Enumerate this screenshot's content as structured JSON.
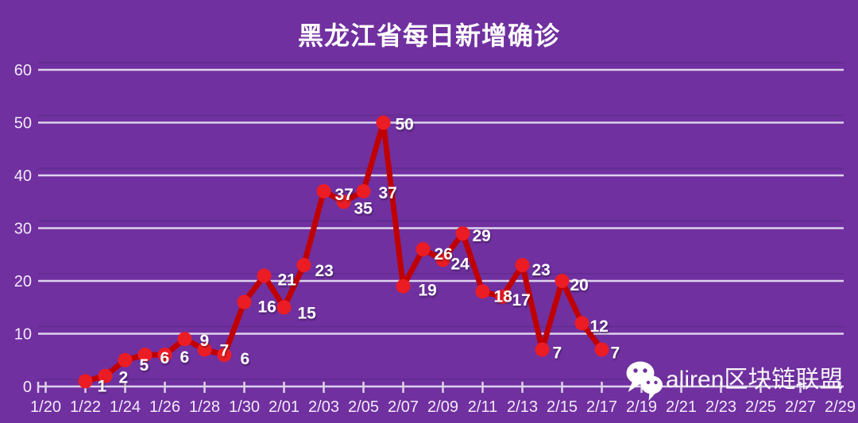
{
  "page": {
    "background": "#7030A0"
  },
  "chart_data": {
    "type": "line",
    "title": "黑龙江省每日新增确诊",
    "xlabel": "",
    "ylabel": "",
    "ylim": [
      0,
      60
    ],
    "y_ticks": [
      0,
      10,
      20,
      30,
      40,
      50,
      60
    ],
    "x_tick_labels": [
      "1/20",
      "1/22",
      "1/24",
      "1/26",
      "1/28",
      "1/30",
      "2/01",
      "2/03",
      "2/05",
      "2/07",
      "2/09",
      "2/11",
      "2/13",
      "2/15",
      "2/17",
      "2/19",
      "2/21",
      "2/23",
      "2/25",
      "2/27",
      "2/29"
    ],
    "grid": "horizontal",
    "legend": "none",
    "point_labels_visible": true,
    "series": [
      {
        "name": "每日新增确诊",
        "x": [
          "1/22",
          "1/23",
          "1/24",
          "1/25",
          "1/26",
          "1/27",
          "1/28",
          "1/29",
          "1/30",
          "1/31",
          "2/01",
          "2/02",
          "2/03",
          "2/04",
          "2/05",
          "2/06",
          "2/07",
          "2/08",
          "2/09",
          "2/10",
          "2/11",
          "2/12",
          "2/13",
          "2/14",
          "2/15",
          "2/16",
          "2/17"
        ],
        "values": [
          1,
          2,
          5,
          6,
          6,
          9,
          7,
          6,
          16,
          21,
          15,
          23,
          37,
          35,
          37,
          50,
          19,
          26,
          24,
          29,
          18,
          17,
          23,
          7,
          20,
          12,
          7
        ]
      }
    ],
    "colors": {
      "background": "#7030A0",
      "line": "#C00000",
      "marker": "#EB1C24",
      "grid": "#DED3EC",
      "grid_shadow": "#5C2A88",
      "axis_text": "#F2EAF9",
      "point_label_text": "#FFFFFF",
      "title_text": "#FFFFFF"
    }
  },
  "watermark": {
    "icon": "wechat-icon",
    "text": "aliren区块链联盟"
  }
}
